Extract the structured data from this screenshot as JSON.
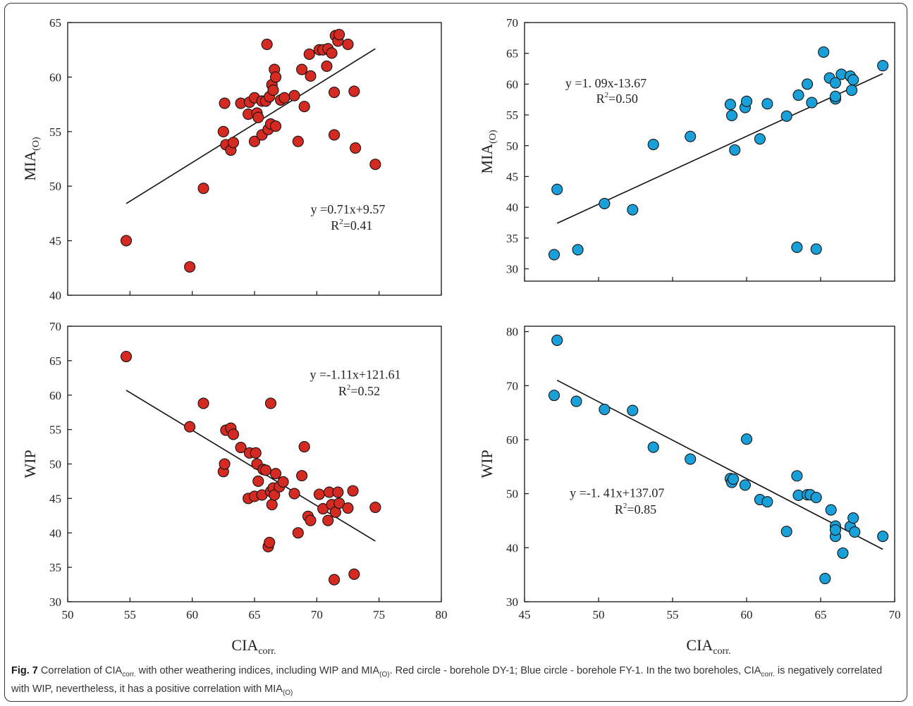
{
  "chart_data": [
    {
      "type": "scatter",
      "xlabel_main": "CIA",
      "xlabel_sub": "corr.",
      "ylabel_main": "MIA",
      "ylabel_sub": "(O)",
      "xlim": [
        50,
        80
      ],
      "ylim": [
        40,
        65
      ],
      "xticks": [
        50,
        55,
        60,
        65,
        70,
        75,
        80
      ],
      "yticks": [
        40,
        45,
        50,
        55,
        60,
        65
      ],
      "show_xticklabels": false,
      "marker_color": "#d42a22",
      "equation": "y =0.71x+9.57",
      "r2_main": "R",
      "r2_sup": "2",
      "r2_value": "=0.41",
      "fit": [
        [
          54.7,
          48.4
        ],
        [
          74.7,
          62.6
        ]
      ],
      "points": [
        [
          54.7,
          45.0
        ],
        [
          59.8,
          42.6
        ],
        [
          60.9,
          49.8
        ],
        [
          62.5,
          55.0
        ],
        [
          62.6,
          57.6
        ],
        [
          62.7,
          53.8
        ],
        [
          63.1,
          53.3
        ],
        [
          63.3,
          54.0
        ],
        [
          63.9,
          57.6
        ],
        [
          64.5,
          56.6
        ],
        [
          64.6,
          57.7
        ],
        [
          65.0,
          54.1
        ],
        [
          65.0,
          58.1
        ],
        [
          65.2,
          56.7
        ],
        [
          65.3,
          56.3
        ],
        [
          65.6,
          57.8
        ],
        [
          65.6,
          54.7
        ],
        [
          65.9,
          57.8
        ],
        [
          66.0,
          63.0
        ],
        [
          66.1,
          55.2
        ],
        [
          66.2,
          58.2
        ],
        [
          66.3,
          55.7
        ],
        [
          66.4,
          59.3
        ],
        [
          66.5,
          58.8
        ],
        [
          66.6,
          60.7
        ],
        [
          66.7,
          60.0
        ],
        [
          66.7,
          55.5
        ],
        [
          67.1,
          57.9
        ],
        [
          67.4,
          58.1
        ],
        [
          68.2,
          58.3
        ],
        [
          68.5,
          54.1
        ],
        [
          68.8,
          60.7
        ],
        [
          69.0,
          57.3
        ],
        [
          69.4,
          62.1
        ],
        [
          69.5,
          60.1
        ],
        [
          70.2,
          62.5
        ],
        [
          70.5,
          62.5
        ],
        [
          70.8,
          61.0
        ],
        [
          70.9,
          62.6
        ],
        [
          71.2,
          62.2
        ],
        [
          71.4,
          58.6
        ],
        [
          71.4,
          54.7
        ],
        [
          71.5,
          63.8
        ],
        [
          71.7,
          63.3
        ],
        [
          71.8,
          63.9
        ],
        [
          72.5,
          63.0
        ],
        [
          73.0,
          58.7
        ],
        [
          73.1,
          53.5
        ],
        [
          74.7,
          52.0
        ]
      ]
    },
    {
      "type": "scatter",
      "xlabel_main": "CIA",
      "xlabel_sub": "corr.",
      "ylabel_main": "MIA",
      "ylabel_sub": "(O)",
      "xlim": [
        45,
        70
      ],
      "ylim": [
        28,
        70
      ],
      "xticks": [
        45,
        50,
        55,
        60,
        65,
        70
      ],
      "yticks": [
        30,
        35,
        40,
        45,
        50,
        55,
        60,
        65,
        70
      ],
      "show_xticklabels": false,
      "marker_color": "#1aa0d8",
      "equation": "y =1. 09x-13.67",
      "r2_main": "R",
      "r2_sup": "2",
      "r2_value": "=0.50",
      "fit": [
        [
          47.2,
          37.4
        ],
        [
          69.2,
          61.7
        ]
      ],
      "points": [
        [
          47.0,
          32.3
        ],
        [
          47.2,
          42.9
        ],
        [
          48.6,
          33.1
        ],
        [
          50.4,
          40.6
        ],
        [
          52.3,
          39.6
        ],
        [
          53.7,
          50.2
        ],
        [
          56.2,
          51.5
        ],
        [
          58.9,
          56.7
        ],
        [
          59.0,
          54.9
        ],
        [
          59.2,
          49.3
        ],
        [
          59.9,
          56.2
        ],
        [
          60.0,
          57.2
        ],
        [
          60.9,
          51.1
        ],
        [
          61.4,
          56.8
        ],
        [
          62.7,
          54.8
        ],
        [
          63.4,
          33.5
        ],
        [
          63.5,
          58.2
        ],
        [
          64.1,
          60.0
        ],
        [
          64.4,
          57.0
        ],
        [
          64.7,
          33.2
        ],
        [
          65.2,
          65.2
        ],
        [
          65.6,
          61.0
        ],
        [
          66.0,
          57.6
        ],
        [
          66.0,
          60.2
        ],
        [
          66.0,
          58.0
        ],
        [
          66.4,
          61.6
        ],
        [
          67.0,
          61.3
        ],
        [
          67.1,
          59.0
        ],
        [
          67.2,
          60.7
        ],
        [
          69.2,
          63.0
        ]
      ]
    },
    {
      "type": "scatter",
      "xlabel_main": "CIA",
      "xlabel_sub": "corr.",
      "ylabel_main": "WIP",
      "ylabel_sub": "",
      "xlim": [
        50,
        80
      ],
      "ylim": [
        30,
        70
      ],
      "xticks": [
        50,
        55,
        60,
        65,
        70,
        75,
        80
      ],
      "yticks": [
        30,
        35,
        40,
        45,
        50,
        55,
        60,
        65,
        70
      ],
      "show_xticklabels": true,
      "marker_color": "#d42a22",
      "equation": "y =-1.11x+121.61",
      "r2_main": "R",
      "r2_sup": "2",
      "r2_value": "=0.52",
      "fit": [
        [
          54.7,
          60.7
        ],
        [
          74.7,
          38.8
        ]
      ],
      "points": [
        [
          54.7,
          65.6
        ],
        [
          59.8,
          55.4
        ],
        [
          60.9,
          58.8
        ],
        [
          62.5,
          48.9
        ],
        [
          62.6,
          50.0
        ],
        [
          62.7,
          54.9
        ],
        [
          63.1,
          55.2
        ],
        [
          63.3,
          54.3
        ],
        [
          63.9,
          52.4
        ],
        [
          64.5,
          45.0
        ],
        [
          64.6,
          51.6
        ],
        [
          65.0,
          45.3
        ],
        [
          65.1,
          51.6
        ],
        [
          65.2,
          50.0
        ],
        [
          65.3,
          47.5
        ],
        [
          65.6,
          45.5
        ],
        [
          65.7,
          49.2
        ],
        [
          65.9,
          49.1
        ],
        [
          66.1,
          38.0
        ],
        [
          66.2,
          38.6
        ],
        [
          66.3,
          46.0
        ],
        [
          66.3,
          58.8
        ],
        [
          66.4,
          44.1
        ],
        [
          66.5,
          46.5
        ],
        [
          66.6,
          45.5
        ],
        [
          66.7,
          48.6
        ],
        [
          67.0,
          46.7
        ],
        [
          67.3,
          47.4
        ],
        [
          68.2,
          45.7
        ],
        [
          68.5,
          40.0
        ],
        [
          68.8,
          48.3
        ],
        [
          69.0,
          52.5
        ],
        [
          69.3,
          42.4
        ],
        [
          69.5,
          41.8
        ],
        [
          70.2,
          45.6
        ],
        [
          70.5,
          43.5
        ],
        [
          70.9,
          41.8
        ],
        [
          71.0,
          45.9
        ],
        [
          71.2,
          44.1
        ],
        [
          71.4,
          33.2
        ],
        [
          71.5,
          43.0
        ],
        [
          71.7,
          45.9
        ],
        [
          71.8,
          44.3
        ],
        [
          72.5,
          43.6
        ],
        [
          72.9,
          46.1
        ],
        [
          73.0,
          34.0
        ],
        [
          74.7,
          43.7
        ]
      ]
    },
    {
      "type": "scatter",
      "xlabel_main": "CIA",
      "xlabel_sub": "corr.",
      "ylabel_main": "WIP",
      "ylabel_sub": "",
      "xlim": [
        45,
        70
      ],
      "ylim": [
        30,
        81
      ],
      "xticks": [
        45,
        50,
        55,
        60,
        65,
        70
      ],
      "yticks": [
        30,
        40,
        50,
        60,
        70,
        80
      ],
      "show_xticklabels": true,
      "marker_color": "#1aa0d8",
      "equation": "y =-1. 41x+137.07",
      "r2_main": "R",
      "r2_sup": "2",
      "r2_value": "=0.85",
      "fit": [
        [
          47.2,
          71.0
        ],
        [
          69.2,
          39.7
        ]
      ],
      "points": [
        [
          47.0,
          68.2
        ],
        [
          47.2,
          78.4
        ],
        [
          48.5,
          67.1
        ],
        [
          50.4,
          65.6
        ],
        [
          52.3,
          65.4
        ],
        [
          53.7,
          58.6
        ],
        [
          56.2,
          56.4
        ],
        [
          58.9,
          52.8
        ],
        [
          59.0,
          52.1
        ],
        [
          59.1,
          52.7
        ],
        [
          59.9,
          51.6
        ],
        [
          60.0,
          60.1
        ],
        [
          60.9,
          48.9
        ],
        [
          61.4,
          48.5
        ],
        [
          62.7,
          43.0
        ],
        [
          63.4,
          53.3
        ],
        [
          63.5,
          49.7
        ],
        [
          64.1,
          49.8
        ],
        [
          64.3,
          49.8
        ],
        [
          64.7,
          49.3
        ],
        [
          65.3,
          34.3
        ],
        [
          65.7,
          47.0
        ],
        [
          66.0,
          44.0
        ],
        [
          66.0,
          42.1
        ],
        [
          66.0,
          43.3
        ],
        [
          66.5,
          39.0
        ],
        [
          67.0,
          43.9
        ],
        [
          67.2,
          45.5
        ],
        [
          67.3,
          42.9
        ],
        [
          69.2,
          42.1
        ]
      ]
    }
  ],
  "caption": {
    "fig_label": "Fig. 7",
    "t1": " Correlation of CIA",
    "s1": "corr.",
    "t2": " with other weathering indices, including WIP and MIA",
    "s2": "(O)",
    "t3": ". Red circle - borehole DY-1; Blue circle - borehole FY-1. In the two boreholes, CIA",
    "s3": "corr.",
    "t4": " is negatively correlated with WIP, nevertheless, it has a positive correlation with MIA",
    "s4": "(O)"
  }
}
